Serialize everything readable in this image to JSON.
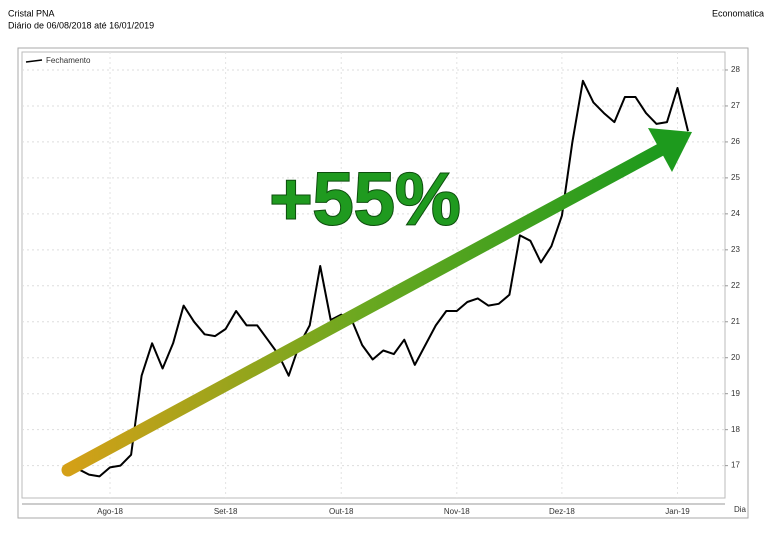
{
  "chart_data": {
    "type": "line",
    "title": "Cristal PNA",
    "subtitle": "Diário de 06/08/2018 até 16/01/2019",
    "source": "Economatica",
    "annotation": "+55%",
    "x_label": "Dia",
    "categories": [
      null,
      null,
      null,
      null,
      "Ago-18",
      null,
      null,
      null,
      null,
      null,
      null,
      null,
      null,
      null,
      null,
      "Set-18",
      null,
      null,
      null,
      null,
      null,
      null,
      null,
      null,
      null,
      null,
      "Out-18",
      null,
      null,
      null,
      null,
      null,
      null,
      null,
      null,
      null,
      null,
      "Nov-18",
      null,
      null,
      null,
      null,
      null,
      null,
      null,
      null,
      null,
      "Dez-18",
      null,
      null,
      null,
      null,
      null,
      null,
      null,
      null,
      null,
      null,
      "Jan-19",
      null
    ],
    "series": [
      {
        "name": "Fechamento",
        "color": "#000000",
        "values": [
          17.0,
          16.9,
          16.75,
          16.7,
          16.95,
          17.0,
          17.3,
          19.5,
          20.4,
          19.7,
          20.4,
          21.45,
          21.0,
          20.65,
          20.6,
          20.8,
          21.3,
          20.9,
          20.9,
          20.5,
          20.1,
          19.5,
          20.35,
          20.9,
          22.55,
          21.05,
          21.2,
          21.05,
          20.35,
          19.95,
          20.2,
          20.1,
          20.5,
          19.8,
          20.35,
          20.9,
          21.3,
          21.3,
          21.55,
          21.65,
          21.45,
          21.5,
          21.75,
          23.4,
          23.25,
          22.65,
          23.1,
          23.95,
          26.0,
          27.7,
          27.1,
          26.8,
          26.55,
          27.25,
          27.25,
          26.8,
          26.5,
          26.55,
          27.5,
          26.3
        ]
      }
    ],
    "ylim": [
      16.1,
      28.5
    ],
    "yticks": [
      17,
      18,
      19,
      20,
      21,
      22,
      23,
      24,
      25,
      26,
      27,
      28
    ],
    "grid": true
  }
}
